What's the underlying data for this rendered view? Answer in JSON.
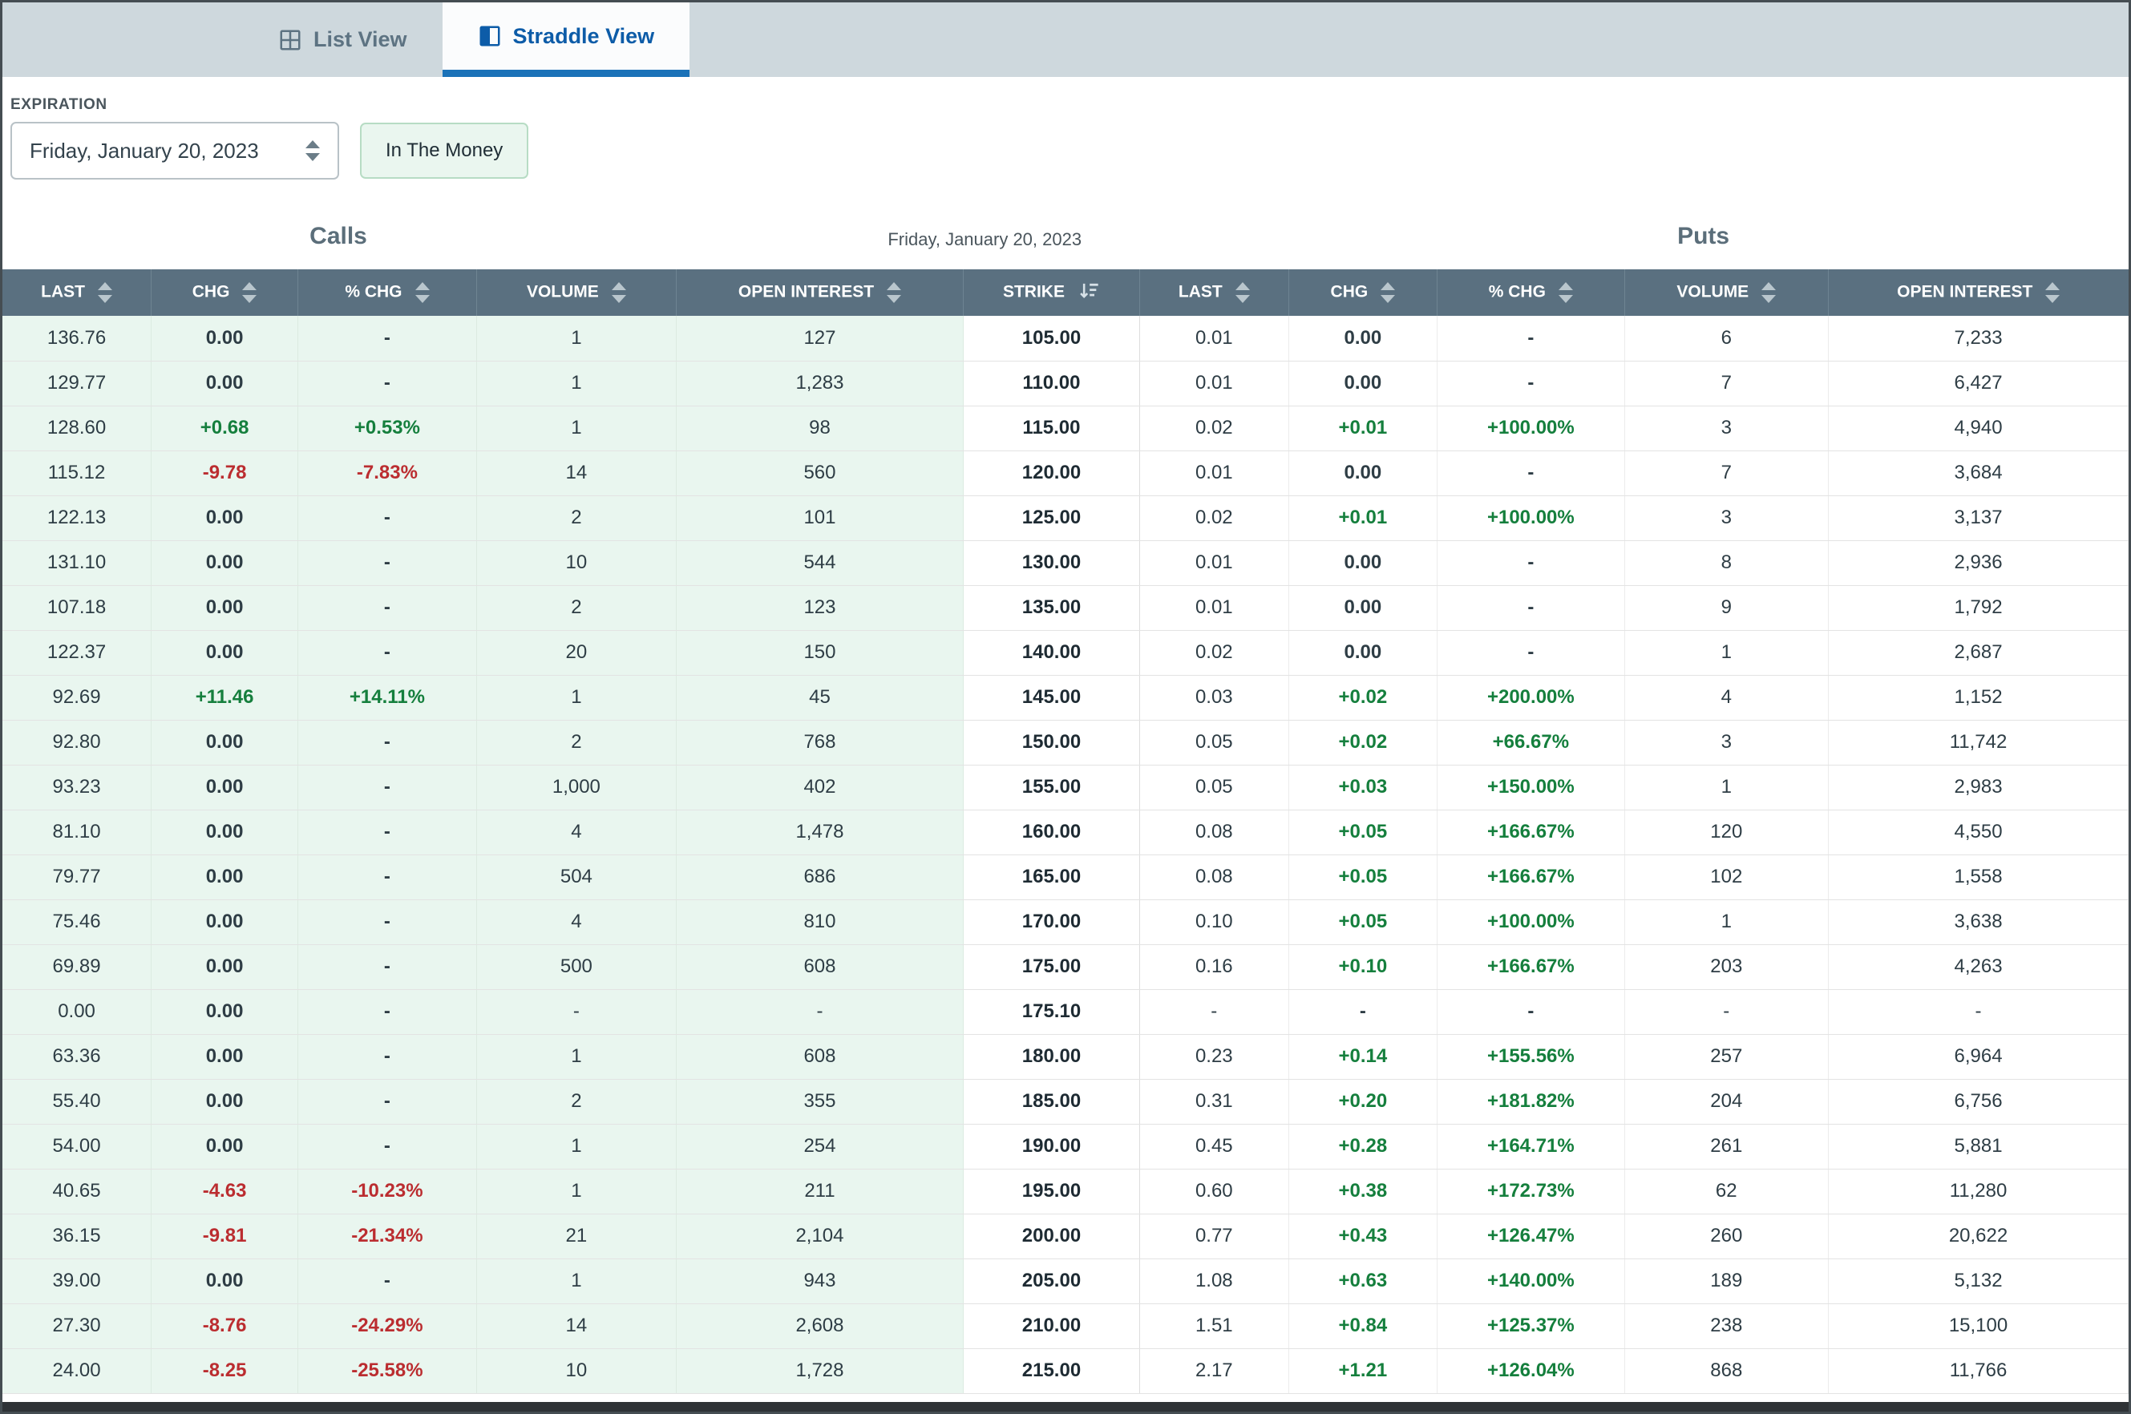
{
  "tabs": {
    "list_view": "List View",
    "straddle_view": "Straddle View"
  },
  "filters": {
    "expiration_label": "EXPIRATION",
    "expiration_value": "Friday, January 20, 2023",
    "itm_button": "In The Money"
  },
  "table": {
    "calls_title": "Calls",
    "center_title": "Friday, January 20, 2023",
    "puts_title": "Puts",
    "headers": [
      "LAST",
      "CHG",
      "% CHG",
      "VOLUME",
      "OPEN INTEREST",
      "STRIKE",
      "LAST",
      "CHG",
      "% CHG",
      "VOLUME",
      "OPEN INTEREST"
    ],
    "rows": [
      [
        "136.76",
        "0.00",
        "-",
        "1",
        "127",
        "105.00",
        "0.01",
        "0.00",
        "-",
        "6",
        "7,233"
      ],
      [
        "129.77",
        "0.00",
        "-",
        "1",
        "1,283",
        "110.00",
        "0.01",
        "0.00",
        "-",
        "7",
        "6,427"
      ],
      [
        "128.60",
        "+0.68",
        "+0.53%",
        "1",
        "98",
        "115.00",
        "0.02",
        "+0.01",
        "+100.00%",
        "3",
        "4,940"
      ],
      [
        "115.12",
        "-9.78",
        "-7.83%",
        "14",
        "560",
        "120.00",
        "0.01",
        "0.00",
        "-",
        "7",
        "3,684"
      ],
      [
        "122.13",
        "0.00",
        "-",
        "2",
        "101",
        "125.00",
        "0.02",
        "+0.01",
        "+100.00%",
        "3",
        "3,137"
      ],
      [
        "131.10",
        "0.00",
        "-",
        "10",
        "544",
        "130.00",
        "0.01",
        "0.00",
        "-",
        "8",
        "2,936"
      ],
      [
        "107.18",
        "0.00",
        "-",
        "2",
        "123",
        "135.00",
        "0.01",
        "0.00",
        "-",
        "9",
        "1,792"
      ],
      [
        "122.37",
        "0.00",
        "-",
        "20",
        "150",
        "140.00",
        "0.02",
        "0.00",
        "-",
        "1",
        "2,687"
      ],
      [
        "92.69",
        "+11.46",
        "+14.11%",
        "1",
        "45",
        "145.00",
        "0.03",
        "+0.02",
        "+200.00%",
        "4",
        "1,152"
      ],
      [
        "92.80",
        "0.00",
        "-",
        "2",
        "768",
        "150.00",
        "0.05",
        "+0.02",
        "+66.67%",
        "3",
        "11,742"
      ],
      [
        "93.23",
        "0.00",
        "-",
        "1,000",
        "402",
        "155.00",
        "0.05",
        "+0.03",
        "+150.00%",
        "1",
        "2,983"
      ],
      [
        "81.10",
        "0.00",
        "-",
        "4",
        "1,478",
        "160.00",
        "0.08",
        "+0.05",
        "+166.67%",
        "120",
        "4,550"
      ],
      [
        "79.77",
        "0.00",
        "-",
        "504",
        "686",
        "165.00",
        "0.08",
        "+0.05",
        "+166.67%",
        "102",
        "1,558"
      ],
      [
        "75.46",
        "0.00",
        "-",
        "4",
        "810",
        "170.00",
        "0.10",
        "+0.05",
        "+100.00%",
        "1",
        "3,638"
      ],
      [
        "69.89",
        "0.00",
        "-",
        "500",
        "608",
        "175.00",
        "0.16",
        "+0.10",
        "+166.67%",
        "203",
        "4,263"
      ],
      [
        "0.00",
        "0.00",
        "-",
        "-",
        "-",
        "175.10",
        "-",
        "-",
        "-",
        "-",
        "-"
      ],
      [
        "63.36",
        "0.00",
        "-",
        "1",
        "608",
        "180.00",
        "0.23",
        "+0.14",
        "+155.56%",
        "257",
        "6,964"
      ],
      [
        "55.40",
        "0.00",
        "-",
        "2",
        "355",
        "185.00",
        "0.31",
        "+0.20",
        "+181.82%",
        "204",
        "6,756"
      ],
      [
        "54.00",
        "0.00",
        "-",
        "1",
        "254",
        "190.00",
        "0.45",
        "+0.28",
        "+164.71%",
        "261",
        "5,881"
      ],
      [
        "40.65",
        "-4.63",
        "-10.23%",
        "1",
        "211",
        "195.00",
        "0.60",
        "+0.38",
        "+172.73%",
        "62",
        "11,280"
      ],
      [
        "36.15",
        "-9.81",
        "-21.34%",
        "21",
        "2,104",
        "200.00",
        "0.77",
        "+0.43",
        "+126.47%",
        "260",
        "20,622"
      ],
      [
        "39.00",
        "0.00",
        "-",
        "1",
        "943",
        "205.00",
        "1.08",
        "+0.63",
        "+140.00%",
        "189",
        "5,132"
      ],
      [
        "27.30",
        "-8.76",
        "-24.29%",
        "14",
        "2,608",
        "210.00",
        "1.51",
        "+0.84",
        "+125.37%",
        "238",
        "15,100"
      ],
      [
        "24.00",
        "-8.25",
        "-25.58%",
        "10",
        "1,728",
        "215.00",
        "2.17",
        "+1.21",
        "+126.04%",
        "868",
        "11,766"
      ]
    ]
  },
  "colors": {
    "positive_text": "#157f3d",
    "negative_text": "#bb2d30",
    "itm_call_bg": "#e9f6ef",
    "header_bg": "#5a7080",
    "active_tab_accent": "#1b72b8",
    "topbar_bg": "#ced8dd"
  }
}
